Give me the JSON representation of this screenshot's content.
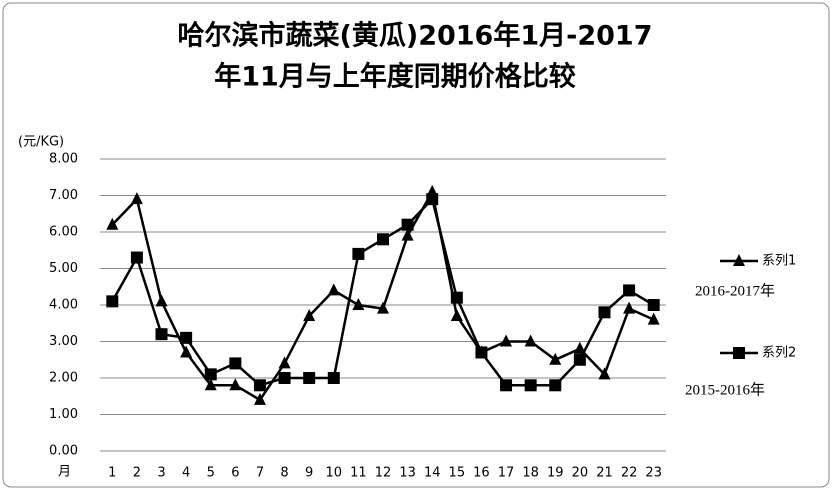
{
  "chart_data": {
    "type": "line",
    "title": [
      "哈尔滨市蔬菜(黄瓜)2016年1月-2017",
      "年11月与上年度同期价格比较"
    ],
    "y_label": "(元/KG)",
    "x_label": "月",
    "categories": [
      "1",
      "2",
      "3",
      "4",
      "5",
      "6",
      "7",
      "8",
      "9",
      "10",
      "11",
      "12",
      "13",
      "14",
      "15",
      "16",
      "17",
      "18",
      "19",
      "20",
      "21",
      "22",
      "23"
    ],
    "series": [
      {
        "name": "系列1",
        "color": "#000000",
        "marker": "triangle",
        "values": [
          6.2,
          6.9,
          4.1,
          2.7,
          1.8,
          1.8,
          1.4,
          2.4,
          3.7,
          4.4,
          4.0,
          3.9,
          5.9,
          7.1,
          3.7,
          2.7,
          3.0,
          3.0,
          2.5,
          2.8,
          2.1,
          3.9,
          3.6
        ]
      },
      {
        "name": "系列2",
        "color": "#000000",
        "marker": "square",
        "values": [
          4.1,
          5.3,
          3.2,
          3.1,
          2.1,
          2.4,
          1.8,
          2.0,
          2.0,
          2.0,
          5.4,
          5.8,
          6.2,
          6.9,
          4.2,
          2.7,
          1.8,
          1.8,
          1.8,
          2.5,
          3.8,
          4.4,
          4.0
        ]
      }
    ],
    "annotations": [
      "2016-2017年",
      "2015-2016年"
    ],
    "ylim": [
      0,
      8
    ],
    "yticks": [
      {
        "value": 0,
        "label": "0.00"
      },
      {
        "value": 1,
        "label": "1.00"
      },
      {
        "value": 2,
        "label": "2.00"
      },
      {
        "value": 3,
        "label": "3.00"
      },
      {
        "value": 4,
        "label": "4.00"
      },
      {
        "value": 5,
        "label": "5.00"
      },
      {
        "value": 6,
        "label": "6.00"
      },
      {
        "value": 7,
        "label": "7.00"
      },
      {
        "value": 8,
        "label": "8.00"
      }
    ],
    "grid": true
  }
}
